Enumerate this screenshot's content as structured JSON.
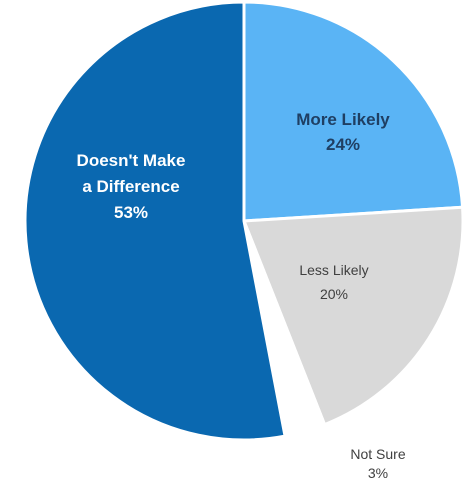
{
  "chart_data": {
    "type": "pie",
    "slices": [
      {
        "label": "More Likely",
        "value": 24,
        "value_label": "24%",
        "color": "#5ab4f5",
        "label_color": "#1f3f63"
      },
      {
        "label": "Less Likely",
        "value": 20,
        "value_label": "20%",
        "color": "#d9d9d9",
        "label_color": "#404040"
      },
      {
        "label": "Not Sure",
        "value": 3,
        "value_label": "3%",
        "color": "#ffffff",
        "label_color": "#404040"
      },
      {
        "label": "Doesn't Make a Difference",
        "value": 53,
        "value_label": "53%",
        "color": "#0a68b0",
        "label_color": "#ffffff"
      }
    ],
    "start_angle": "12 o'clock",
    "direction": "clockwise",
    "slice_border_color": "#ffffff",
    "not_sure_label_placement": "outside-below"
  }
}
